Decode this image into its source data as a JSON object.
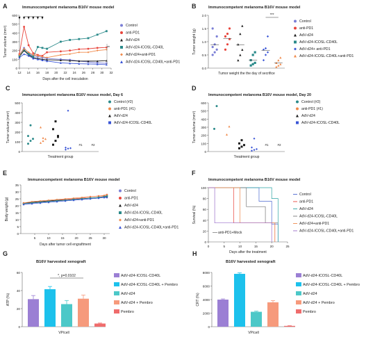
{
  "chart_data": [
    {
      "panel": "A",
      "type": "line",
      "title": "Immunocompetent melanoma B16V mouse model",
      "xlabel": "Days after the cell inoculation",
      "ylabel": "Tumor volume (mm³)",
      "xticks": [
        "12",
        "14",
        "16",
        "18",
        "20",
        "22",
        "24",
        "26",
        "28",
        "30",
        "32"
      ],
      "yticks": [
        "0",
        "100",
        "200",
        "300",
        "400",
        "500",
        "600"
      ],
      "xlim": [
        12,
        32
      ],
      "ylim": [
        0,
        600
      ],
      "treatment_days": [
        12,
        13,
        14,
        15,
        16,
        17
      ],
      "annotation": "**",
      "x": [
        12,
        13,
        14,
        15,
        16,
        17,
        18,
        21,
        23,
        25,
        27,
        29,
        31
      ],
      "series": [
        {
          "name": "Control",
          "color": "#7b7fd6",
          "values": [
            150,
            230,
            170,
            140,
            130,
            120,
            110,
            100,
            95,
            80,
            70,
            60,
            55
          ]
        },
        {
          "name": "anti-PD1",
          "color": "#e8453c",
          "values": [
            160,
            470,
            260,
            170,
            150,
            140,
            180,
            190,
            200,
            215,
            220,
            230,
            235
          ]
        },
        {
          "name": "AdV-d24",
          "color": "#1d1d1d",
          "values": [
            130,
            200,
            150,
            120,
            110,
            100,
            95,
            90,
            85,
            80,
            80,
            80,
            85
          ]
        },
        {
          "name": "AdV-d24-ICOSL-CD40L",
          "color": "#2a8a8a",
          "values": [
            140,
            210,
            160,
            130,
            240,
            230,
            220,
            300,
            320,
            330,
            340,
            380,
            420
          ]
        },
        {
          "name": "AdV-d24+anti-PD1",
          "color": "#f08a4b",
          "values": [
            150,
            220,
            180,
            150,
            140,
            130,
            120,
            150,
            160,
            180,
            180,
            200,
            210
          ]
        },
        {
          "name": "AdV-d24-ICOSL-CD40L+anti-PD1",
          "color": "#3a55d6",
          "values": [
            120,
            160,
            140,
            110,
            100,
            90,
            80,
            60,
            55,
            50,
            48,
            45,
            40
          ]
        }
      ]
    },
    {
      "panel": "B",
      "type": "scatter",
      "title": "Immunocompetent melanoma B16V mouse model",
      "xlabel": "Tumor weight the the day of secrifice",
      "ylabel": "Tumor weight (g)",
      "yticks": [
        "0.0",
        "0.5",
        "1.0",
        "1.5",
        "2.0"
      ],
      "ylim": [
        0,
        2.0
      ],
      "annotation": "***",
      "series": [
        {
          "name": "Control",
          "color": "#7b7fd6",
          "values": [
            0.5,
            0.6,
            0.7,
            0.8,
            0.9,
            1.2,
            1.5
          ]
        },
        {
          "name": "anti-PD1",
          "color": "#e8453c",
          "values": [
            0.7,
            0.9,
            1.1,
            1.2,
            1.3,
            1.5
          ]
        },
        {
          "name": "AdV-d24",
          "color": "#1d1d1d",
          "values": [
            0.3,
            0.5,
            0.7,
            0.9,
            1.3,
            1.6
          ]
        },
        {
          "name": "AdV-d24-ICOSL-CD40L",
          "color": "#2a8a8a",
          "values": [
            0.1,
            0.15,
            0.2,
            0.3,
            0.5,
            0.6
          ]
        },
        {
          "name": "AdV-d24+ anti-PD1",
          "color": "#3a55d6",
          "values": [
            0.3,
            0.5,
            0.6,
            0.7,
            0.75,
            1.2
          ]
        },
        {
          "name": "AdV-d24-ICOSL-CD40L+anti-PD1",
          "color": "#f08a4b",
          "values": [
            0.05,
            0.1,
            0.15,
            0.2,
            0.3,
            0.4
          ]
        }
      ]
    },
    {
      "panel": "C",
      "type": "scatter",
      "title": "Immunocompetent melanoma B16V mouse model, Day 6",
      "xlabel": "Treatment group",
      "ylabel": "Tumor volume (mm³)",
      "yticks": [
        "0",
        "100",
        "200",
        "300",
        "400",
        "500"
      ],
      "ylim": [
        0,
        500
      ],
      "labels": [
        "#1",
        "#2"
      ],
      "series": [
        {
          "name": "Control (#2)",
          "color": "#2a8a8a",
          "values": [
            80,
            110,
            130,
            160,
            270
          ]
        },
        {
          "name": "anti-PD1 (#1)",
          "color": "#f08a4b",
          "values": [
            90,
            110,
            130,
            250,
            140
          ]
        },
        {
          "name": "AdV-d24",
          "color": "#1d1d1d",
          "values": [
            70,
            110,
            150,
            230,
            310,
            160
          ]
        },
        {
          "name": "AdV-d24-ICOSL-CD40L",
          "color": "#3a55d6",
          "values": [
            20,
            30,
            35,
            40,
            420
          ]
        }
      ]
    },
    {
      "panel": "D",
      "type": "scatter",
      "title": "Immunocompetent melanoma B16V mouse model, Day 20",
      "xlabel": "Treatment group",
      "ylabel": "Tumor volume (mm³)",
      "yticks": [
        "0",
        "100",
        "200",
        "300",
        "400",
        "500",
        "600"
      ],
      "ylim": [
        0,
        600
      ],
      "labels": [
        "#1",
        "#2"
      ],
      "series": [
        {
          "name": "Control (#2)",
          "color": "#2a8a8a",
          "values": [
            280,
            560
          ]
        },
        {
          "name": "anti-PD1 (#1)",
          "color": "#f08a4b",
          "values": [
            210,
            310
          ]
        },
        {
          "name": "AdV-d24",
          "color": "#1d1d1d",
          "values": [
            40,
            60,
            80,
            100,
            140
          ]
        },
        {
          "name": "AdV-d24-ICOSL-CD40L",
          "color": "#3a55d6",
          "values": [
            10,
            20,
            30,
            50,
            160
          ]
        }
      ]
    },
    {
      "panel": "E",
      "type": "line",
      "title": "Immunocompetent melanoma B16V mouse model",
      "xlabel": "Days after tumor cell engraftment",
      "ylabel": "Body weight (g)",
      "xticks": [
        "5",
        "10",
        "15",
        "20",
        "25",
        "30"
      ],
      "yticks": [
        "0",
        "5",
        "10",
        "15",
        "20",
        "25",
        "30",
        "35"
      ],
      "xlim": [
        0,
        32
      ],
      "ylim": [
        0,
        35
      ],
      "x": [
        1,
        4,
        7,
        10,
        13,
        16,
        19,
        22,
        25,
        28,
        30,
        31
      ],
      "series": [
        {
          "name": "Control",
          "color": "#7b7fd6",
          "values": [
            21,
            22,
            22.5,
            23,
            23.5,
            24,
            24.5,
            25,
            25.5,
            26,
            26,
            26.5
          ]
        },
        {
          "name": "anti-PD1",
          "color": "#e8453c",
          "values": [
            22,
            22.5,
            23,
            23.5,
            24,
            24.5,
            25,
            25.5,
            26.5,
            27,
            27,
            28
          ]
        },
        {
          "name": "AdV-d24",
          "color": "#1d1d1d",
          "values": [
            22,
            22.5,
            23,
            23.5,
            24,
            24,
            24.5,
            25,
            25.5,
            26,
            26.5,
            26.5
          ]
        },
        {
          "name": "AdV-d24-ICOSL-CD40L",
          "color": "#2a8a8a",
          "values": [
            21.5,
            22,
            22.5,
            23,
            23.5,
            24,
            24.5,
            25,
            25.5,
            26,
            26.5,
            27
          ]
        },
        {
          "name": "AdV-d24+anti-PD1",
          "color": "#f08a4b",
          "values": [
            22,
            23,
            23.5,
            24,
            24.5,
            25,
            25.5,
            26,
            26.5,
            27,
            27.5,
            28
          ]
        },
        {
          "name": "AdV-d24-ICOSL-CD40L+anti-PD1",
          "color": "#3a55d6",
          "values": [
            21,
            21.5,
            22,
            22.5,
            23,
            23.5,
            24,
            24.5,
            25,
            25.5,
            26,
            26
          ]
        }
      ]
    },
    {
      "panel": "F",
      "type": "line",
      "title": "Immunocompetent melanoma B16V mouse model",
      "xlabel": "Days after the treatment",
      "ylabel": "Survival (%)",
      "xticks": [
        "0",
        "5",
        "10",
        "15",
        "20",
        "25"
      ],
      "yticks": [
        "0",
        "20",
        "40",
        "60",
        "80",
        "100"
      ],
      "xlim": [
        0,
        25
      ],
      "ylim": [
        0,
        100
      ],
      "annotation": "anti-PD1+Mock",
      "series": [
        {
          "name": "Control",
          "color": "#4a66d0",
          "steps": [
            [
              0,
              100
            ],
            [
              16,
              100
            ],
            [
              16,
              75
            ],
            [
              20,
              75
            ],
            [
              20,
              33
            ],
            [
              22,
              33
            ],
            [
              22,
              0
            ]
          ]
        },
        {
          "name": "anti-PD1",
          "color": "#e8453c",
          "steps": [
            [
              0,
              100
            ],
            [
              8,
              100
            ],
            [
              8,
              35
            ],
            [
              21,
              35
            ],
            [
              21,
              0
            ]
          ]
        },
        {
          "name": "AdV-d24",
          "color": "#2aa3a3",
          "steps": [
            [
              0,
              100
            ],
            [
              20,
              100
            ],
            [
              20,
              80
            ],
            [
              22,
              80
            ],
            [
              22,
              0
            ]
          ]
        },
        {
          "name": "AdV-d24-ICOSL-CD40L",
          "color": "#777777",
          "steps": [
            [
              0,
              100
            ],
            [
              12,
              100
            ],
            [
              12,
              65
            ],
            [
              18,
              65
            ],
            [
              18,
              35
            ],
            [
              22,
              35
            ]
          ]
        },
        {
          "name": "AdV-d24+anti-PD1",
          "color": "#f08a4b",
          "steps": [
            [
              0,
              100
            ],
            [
              10,
              100
            ],
            [
              10,
              35
            ],
            [
              21,
              35
            ],
            [
              21,
              0
            ]
          ]
        },
        {
          "name": "AdV-d24-ICOSL-CD40L+anti-PD1",
          "color": "#9a6cc9",
          "steps": [
            [
              0,
              100
            ],
            [
              2,
              100
            ],
            [
              2,
              35
            ],
            [
              20,
              35
            ],
            [
              20,
              0
            ]
          ]
        }
      ]
    },
    {
      "panel": "G",
      "type": "bar",
      "title": "B16V harvested xenograft",
      "xlabel": "VP/cell",
      "ylabel": "ATP (%)",
      "yticks": [
        "0",
        "20",
        "40",
        "60"
      ],
      "ylim": [
        0,
        60
      ],
      "annotation": "*, p=0.0102",
      "categories": [
        "AdV-d24-ICOSL-CD40L",
        "AdV-d24-ICOSL-CD40L + Pembro",
        "AdV-d24",
        "AdV-d24 + Pembro",
        "Pembro"
      ],
      "values": [
        30.5,
        41.5,
        25,
        31,
        3.5
      ],
      "errors": [
        4,
        3,
        4,
        4,
        0.5
      ],
      "colors": [
        "#9b7fd4",
        "#1cc1ec",
        "#4cc8c8",
        "#f69a7c",
        "#ef6c6c"
      ]
    },
    {
      "panel": "H",
      "type": "bar",
      "title": "B16V harvested xenograft",
      "xlabel": "VP/cell",
      "ylabel": "CRT (%)",
      "yticks": [
        "0",
        "2000",
        "4000",
        "6000",
        "8000"
      ],
      "ylim": [
        0,
        8000
      ],
      "categories": [
        "AdV-d24-ICOSL-CD40L",
        "AdV-d24-ICOSL-CD40L + Pembro",
        "AdV-d24",
        "AdV-d24 + Pembro",
        "Pembro"
      ],
      "values": [
        4000,
        7800,
        2200,
        3600,
        120
      ],
      "errors": [
        100,
        150,
        100,
        250,
        30
      ],
      "colors": [
        "#9b7fd4",
        "#1cc1ec",
        "#4cc8c8",
        "#f69a7c",
        "#ef6c6c"
      ]
    }
  ]
}
